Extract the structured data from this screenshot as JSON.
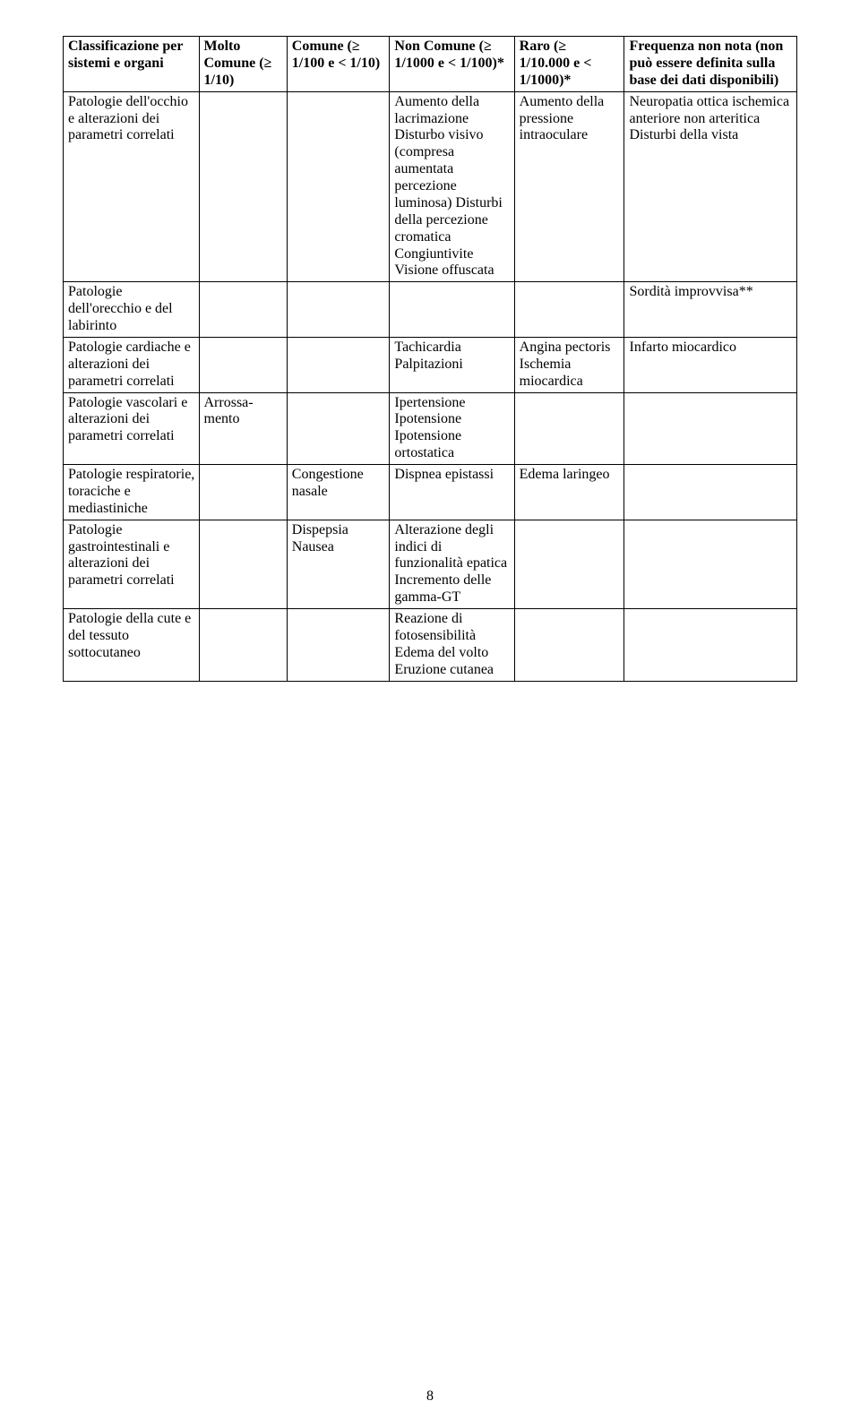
{
  "page_number": "8",
  "table": {
    "headers": [
      "Classificazione per sistemi e organi",
      "Molto Comune (≥ 1/10)",
      "Comune (≥ 1/100 e\n< 1/10)",
      "Non Comune (≥ 1/1000 e\n< 1/100)*",
      "Raro\n(≥ 1/10.000 e\n< 1/1000)*",
      "Frequenza non nota (non può essere definita sulla base dei dati disponibili)"
    ],
    "rows": [
      {
        "c0": "Patologie dell'occhio e alterazioni dei parametri correlati",
        "c1": "",
        "c2": "",
        "c3": "Aumento della lacrimazione Disturbo visivo (compresa aumentata percezione luminosa) Disturbi della percezione cromatica Congiuntivite Visione offuscata",
        "c4": "Aumento della pressione intraoculare",
        "c5": "Neuropatia ottica ischemica anteriore non arteritica Disturbi della vista"
      },
      {
        "c0": "Patologie dell'orecchio e del labirinto",
        "c1": "",
        "c2": "",
        "c3": "",
        "c4": "",
        "c5": "Sordità improvvisa**"
      },
      {
        "c0": "Patologie cardiache e alterazioni dei parametri correlati",
        "c1": "",
        "c2": "",
        "c3": "Tachicardia Palpitazioni",
        "c4": "Angina pectoris Ischemia miocardica",
        "c5": "Infarto miocardico"
      },
      {
        "c0": "Patologie vascolari e alterazioni dei parametri correlati",
        "c1": "Arrossa-mento",
        "c2": "",
        "c3": "Ipertensione Ipotensione Ipotensione ortostatica",
        "c4": "",
        "c5": ""
      },
      {
        "c0": "Patologie respiratorie, toraciche e mediastiniche",
        "c1": "",
        "c2": "Congestione nasale",
        "c3": "Dispnea epistassi",
        "c4": "Edema laringeo",
        "c5": ""
      },
      {
        "c0": "Patologie gastrointestinali e alterazioni dei parametri correlati",
        "c1": "",
        "c2": "Dispepsia Nausea",
        "c3": "Alterazione degli indici di funzionalità epatica Incremento delle gamma-GT",
        "c4": "",
        "c5": ""
      },
      {
        "c0": "Patologie della cute e del tessuto sottocutaneo",
        "c1": "",
        "c2": "",
        "c3": "Reazione di fotosensibilità Edema del volto Eruzione cutanea",
        "c4": "",
        "c5": ""
      }
    ]
  }
}
